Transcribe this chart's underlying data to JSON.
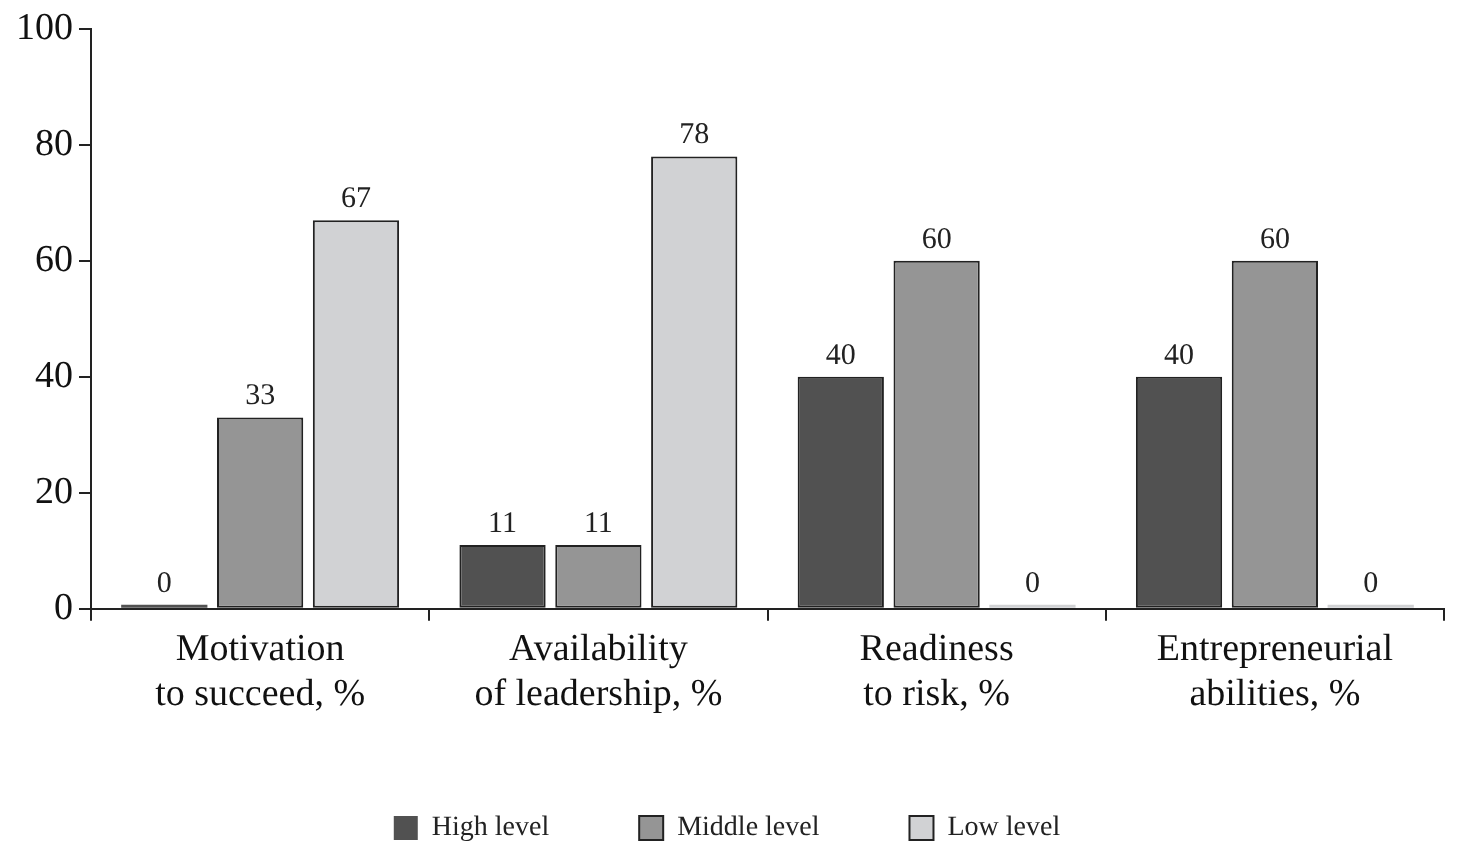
{
  "chart_data": {
    "type": "bar",
    "categories": [
      "Motivation\nto succeed, %",
      "Availability\nof leadership, %",
      "Readiness\nto risk, %",
      "Entrepreneurial\nabilities, %"
    ],
    "series": [
      {
        "name": "High level",
        "color": "#515151",
        "values": [
          0,
          11,
          40,
          40
        ]
      },
      {
        "name": "Middle level",
        "color": "#959595",
        "values": [
          33,
          11,
          60,
          60
        ]
      },
      {
        "name": "Low level",
        "color": "#d1d2d4",
        "values": [
          67,
          78,
          0,
          0
        ]
      }
    ],
    "ylim": [
      0,
      100
    ],
    "yticks": [
      0,
      20,
      40,
      60,
      80,
      100
    ],
    "grid": false,
    "legend": "bottom",
    "data_labels": true
  }
}
